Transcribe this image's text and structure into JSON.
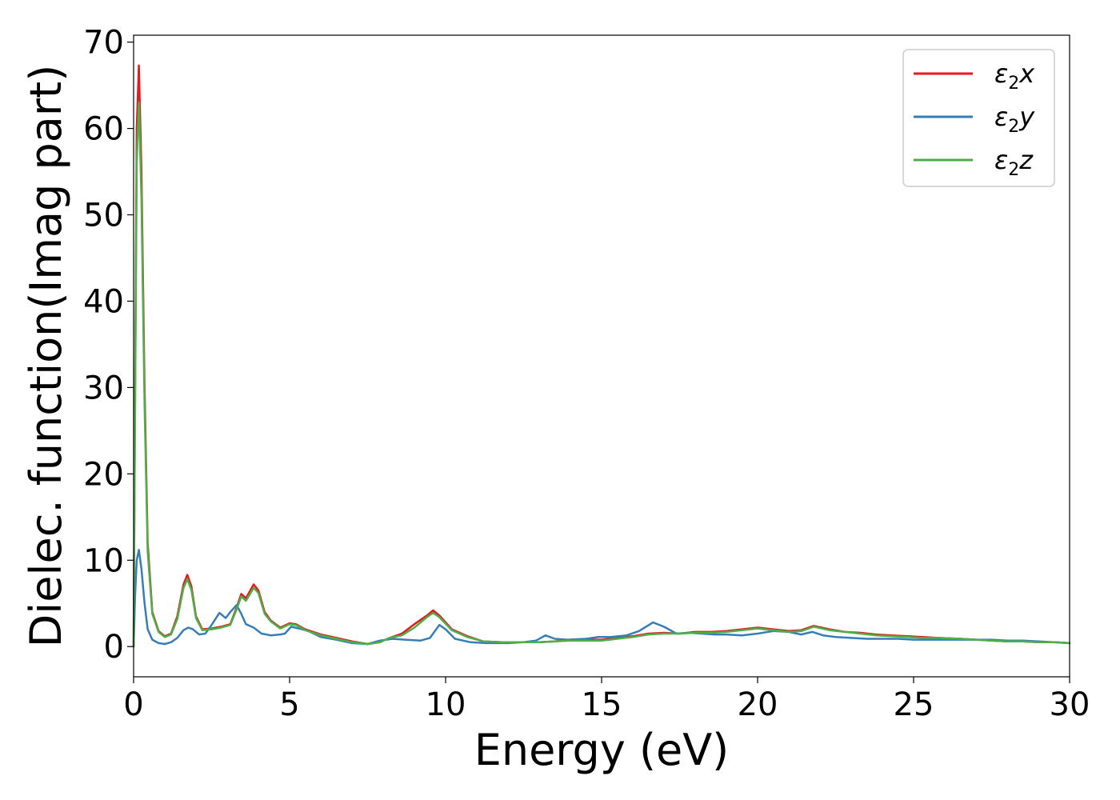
{
  "chart_data": {
    "type": "line",
    "title": "",
    "xlabel": "Energy (eV)",
    "ylabel": "Dielec. function(Imag part)",
    "xlim": [
      0,
      30
    ],
    "ylim": [
      -3.5,
      70.8
    ],
    "xticks": [
      "0",
      "5",
      "10",
      "15",
      "20",
      "25",
      "30"
    ],
    "yticks": [
      "0",
      "10",
      "20",
      "30",
      "40",
      "50",
      "60",
      "70"
    ],
    "grid": false,
    "legend_position": "top-right",
    "series": [
      {
        "name": "ε₂x",
        "legend_main": "ε",
        "legend_sub": "2",
        "legend_var": "x",
        "color": "#e41a1c",
        "points": [
          [
            0,
            0
          ],
          [
            0.05,
            30
          ],
          [
            0.1,
            60
          ],
          [
            0.17,
            67.3
          ],
          [
            0.25,
            55
          ],
          [
            0.35,
            30
          ],
          [
            0.45,
            12
          ],
          [
            0.6,
            4
          ],
          [
            0.8,
            1.8
          ],
          [
            1.0,
            1.2
          ],
          [
            1.2,
            1.5
          ],
          [
            1.4,
            3.5
          ],
          [
            1.6,
            7.2
          ],
          [
            1.72,
            8.3
          ],
          [
            1.85,
            7
          ],
          [
            2.0,
            3.5
          ],
          [
            2.2,
            2.0
          ],
          [
            2.5,
            2.1
          ],
          [
            2.8,
            2.3
          ],
          [
            3.1,
            2.6
          ],
          [
            3.3,
            4.5
          ],
          [
            3.45,
            6.1
          ],
          [
            3.6,
            5.6
          ],
          [
            3.85,
            7.2
          ],
          [
            4.0,
            6.5
          ],
          [
            4.2,
            4
          ],
          [
            4.4,
            3
          ],
          [
            4.7,
            2.2
          ],
          [
            5.0,
            2.7
          ],
          [
            5.2,
            2.6
          ],
          [
            5.5,
            2.0
          ],
          [
            6.0,
            1.4
          ],
          [
            6.5,
            1.0
          ],
          [
            7.0,
            0.6
          ],
          [
            7.5,
            0.3
          ],
          [
            7.9,
            0.5
          ],
          [
            8.2,
            1.0
          ],
          [
            8.6,
            1.5
          ],
          [
            9.0,
            2.6
          ],
          [
            9.4,
            3.6
          ],
          [
            9.6,
            4.2
          ],
          [
            9.8,
            3.6
          ],
          [
            10.2,
            2.0
          ],
          [
            10.7,
            1.2
          ],
          [
            11.2,
            0.6
          ],
          [
            11.8,
            0.5
          ],
          [
            12.5,
            0.5
          ],
          [
            13.0,
            0.5
          ],
          [
            13.5,
            0.6
          ],
          [
            14.0,
            0.8
          ],
          [
            14.5,
            0.8
          ],
          [
            15.0,
            0.8
          ],
          [
            15.5,
            1.0
          ],
          [
            16.0,
            1.2
          ],
          [
            16.5,
            1.5
          ],
          [
            17.0,
            1.6
          ],
          [
            17.5,
            1.5
          ],
          [
            18.0,
            1.7
          ],
          [
            18.5,
            1.7
          ],
          [
            19.0,
            1.8
          ],
          [
            19.5,
            2.0
          ],
          [
            20.0,
            2.2
          ],
          [
            20.5,
            2.0
          ],
          [
            21.0,
            1.8
          ],
          [
            21.4,
            1.9
          ],
          [
            21.8,
            2.4
          ],
          [
            22.3,
            2.0
          ],
          [
            22.8,
            1.7
          ],
          [
            23.3,
            1.6
          ],
          [
            23.8,
            1.4
          ],
          [
            24.3,
            1.3
          ],
          [
            24.8,
            1.2
          ],
          [
            25.3,
            1.1
          ],
          [
            25.8,
            1.0
          ],
          [
            26.5,
            0.9
          ],
          [
            27.0,
            0.8
          ],
          [
            27.5,
            0.7
          ],
          [
            28.0,
            0.6
          ],
          [
            28.5,
            0.6
          ],
          [
            29.0,
            0.5
          ],
          [
            29.5,
            0.5
          ],
          [
            30.0,
            0.4
          ]
        ]
      },
      {
        "name": "ε₂y",
        "legend_main": "ε",
        "legend_sub": "2",
        "legend_var": "y",
        "color": "#377eb8",
        "points": [
          [
            0,
            0
          ],
          [
            0.05,
            6
          ],
          [
            0.1,
            10
          ],
          [
            0.17,
            11.2
          ],
          [
            0.25,
            9
          ],
          [
            0.35,
            5
          ],
          [
            0.45,
            2
          ],
          [
            0.6,
            0.8
          ],
          [
            0.8,
            0.4
          ],
          [
            1.0,
            0.3
          ],
          [
            1.2,
            0.5
          ],
          [
            1.4,
            1.0
          ],
          [
            1.6,
            1.9
          ],
          [
            1.75,
            2.2
          ],
          [
            1.9,
            2.0
          ],
          [
            2.1,
            1.4
          ],
          [
            2.3,
            1.5
          ],
          [
            2.5,
            2.5
          ],
          [
            2.75,
            3.9
          ],
          [
            2.95,
            3.3
          ],
          [
            3.1,
            4.0
          ],
          [
            3.3,
            4.8
          ],
          [
            3.45,
            3.8
          ],
          [
            3.6,
            2.6
          ],
          [
            3.85,
            2.2
          ],
          [
            4.1,
            1.5
          ],
          [
            4.4,
            1.3
          ],
          [
            4.7,
            1.4
          ],
          [
            4.85,
            1.5
          ],
          [
            5.05,
            2.3
          ],
          [
            5.3,
            2.1
          ],
          [
            5.6,
            1.8
          ],
          [
            6.0,
            1.1
          ],
          [
            6.5,
            0.8
          ],
          [
            7.0,
            0.4
          ],
          [
            7.5,
            0.3
          ],
          [
            7.9,
            0.7
          ],
          [
            8.3,
            0.9
          ],
          [
            8.7,
            0.8
          ],
          [
            9.2,
            0.7
          ],
          [
            9.5,
            1.0
          ],
          [
            9.8,
            2.5
          ],
          [
            10.0,
            2.0
          ],
          [
            10.3,
            0.9
          ],
          [
            10.8,
            0.5
          ],
          [
            11.3,
            0.4
          ],
          [
            12.0,
            0.4
          ],
          [
            12.5,
            0.5
          ],
          [
            12.9,
            0.7
          ],
          [
            13.2,
            1.3
          ],
          [
            13.5,
            0.9
          ],
          [
            13.9,
            0.8
          ],
          [
            14.5,
            0.9
          ],
          [
            14.9,
            1.1
          ],
          [
            15.3,
            1.1
          ],
          [
            15.8,
            1.3
          ],
          [
            16.2,
            1.8
          ],
          [
            16.65,
            2.8
          ],
          [
            17.0,
            2.3
          ],
          [
            17.4,
            1.5
          ],
          [
            17.8,
            1.6
          ],
          [
            18.2,
            1.5
          ],
          [
            18.6,
            1.4
          ],
          [
            19.0,
            1.4
          ],
          [
            19.5,
            1.3
          ],
          [
            20.0,
            1.5
          ],
          [
            20.5,
            1.8
          ],
          [
            21.0,
            1.7
          ],
          [
            21.4,
            1.4
          ],
          [
            21.75,
            1.7
          ],
          [
            22.1,
            1.3
          ],
          [
            22.5,
            1.1
          ],
          [
            23.0,
            1.0
          ],
          [
            23.5,
            0.9
          ],
          [
            24.0,
            0.9
          ],
          [
            24.5,
            0.9
          ],
          [
            25.0,
            0.8
          ],
          [
            25.5,
            0.8
          ],
          [
            26.0,
            0.8
          ],
          [
            26.5,
            0.8
          ],
          [
            27.0,
            0.8
          ],
          [
            27.5,
            0.8
          ],
          [
            28.0,
            0.7
          ],
          [
            28.5,
            0.7
          ],
          [
            29.0,
            0.6
          ],
          [
            29.5,
            0.5
          ],
          [
            30.0,
            0.4
          ]
        ]
      },
      {
        "name": "ε₂z",
        "legend_main": "ε",
        "legend_sub": "2",
        "legend_var": "z",
        "color": "#4daf4a",
        "points": [
          [
            0,
            0
          ],
          [
            0.05,
            28
          ],
          [
            0.1,
            56
          ],
          [
            0.17,
            63
          ],
          [
            0.25,
            52
          ],
          [
            0.35,
            28
          ],
          [
            0.45,
            11
          ],
          [
            0.6,
            3.8
          ],
          [
            0.8,
            1.7
          ],
          [
            1.0,
            1.1
          ],
          [
            1.2,
            1.4
          ],
          [
            1.4,
            3.2
          ],
          [
            1.6,
            6.8
          ],
          [
            1.72,
            7.8
          ],
          [
            1.85,
            6.6
          ],
          [
            2.0,
            3.3
          ],
          [
            2.2,
            1.9
          ],
          [
            2.5,
            2.0
          ],
          [
            2.8,
            2.2
          ],
          [
            3.1,
            2.5
          ],
          [
            3.3,
            4.3
          ],
          [
            3.45,
            5.8
          ],
          [
            3.6,
            5.3
          ],
          [
            3.85,
            6.8
          ],
          [
            4.0,
            6.2
          ],
          [
            4.2,
            3.8
          ],
          [
            4.4,
            2.9
          ],
          [
            4.7,
            2.1
          ],
          [
            5.0,
            2.6
          ],
          [
            5.2,
            2.5
          ],
          [
            5.5,
            1.9
          ],
          [
            6.0,
            1.3
          ],
          [
            6.5,
            0.9
          ],
          [
            7.0,
            0.5
          ],
          [
            7.5,
            0.3
          ],
          [
            7.9,
            0.5
          ],
          [
            8.2,
            1.0
          ],
          [
            8.6,
            1.3
          ],
          [
            9.0,
            2.2
          ],
          [
            9.4,
            3.4
          ],
          [
            9.6,
            3.9
          ],
          [
            9.8,
            3.4
          ],
          [
            10.2,
            1.9
          ],
          [
            10.7,
            1.1
          ],
          [
            11.2,
            0.6
          ],
          [
            11.8,
            0.5
          ],
          [
            12.5,
            0.5
          ],
          [
            13.0,
            0.5
          ],
          [
            13.5,
            0.6
          ],
          [
            14.0,
            0.7
          ],
          [
            14.5,
            0.7
          ],
          [
            15.0,
            0.7
          ],
          [
            15.5,
            0.9
          ],
          [
            16.0,
            1.1
          ],
          [
            16.5,
            1.4
          ],
          [
            17.0,
            1.5
          ],
          [
            17.5,
            1.5
          ],
          [
            18.0,
            1.6
          ],
          [
            18.5,
            1.6
          ],
          [
            19.0,
            1.7
          ],
          [
            19.5,
            1.9
          ],
          [
            20.0,
            2.1
          ],
          [
            20.5,
            1.9
          ],
          [
            21.0,
            1.7
          ],
          [
            21.4,
            1.8
          ],
          [
            21.8,
            2.3
          ],
          [
            22.3,
            1.9
          ],
          [
            22.8,
            1.7
          ],
          [
            23.3,
            1.5
          ],
          [
            23.8,
            1.3
          ],
          [
            24.3,
            1.2
          ],
          [
            24.8,
            1.1
          ],
          [
            25.3,
            1.0
          ],
          [
            25.8,
            1.0
          ],
          [
            26.5,
            0.9
          ],
          [
            27.0,
            0.8
          ],
          [
            27.5,
            0.7
          ],
          [
            28.0,
            0.6
          ],
          [
            28.5,
            0.6
          ],
          [
            29.0,
            0.5
          ],
          [
            29.5,
            0.5
          ],
          [
            30.0,
            0.4
          ]
        ]
      }
    ]
  }
}
